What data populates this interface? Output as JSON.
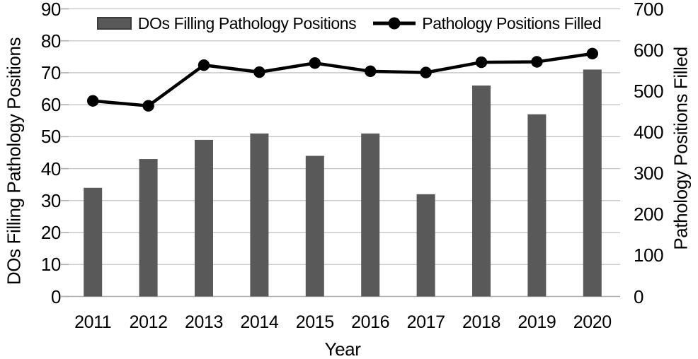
{
  "chart_data": {
    "type": "combo-bar-line",
    "title": "",
    "x": [
      "2011",
      "2012",
      "2013",
      "2014",
      "2015",
      "2016",
      "2017",
      "2018",
      "2019",
      "2020"
    ],
    "xlabel": "Year",
    "series": [
      {
        "name": "DOs Filling Pathology Positions",
        "type": "bar",
        "axis": "left",
        "color": "#595959",
        "values": [
          34,
          43,
          49,
          51,
          44,
          51,
          32,
          66,
          57,
          71
        ]
      },
      {
        "name": "Pathology Positions Filled",
        "type": "line",
        "axis": "right",
        "color": "#000000",
        "values": [
          476,
          464,
          563,
          546,
          568,
          548,
          545,
          570,
          571,
          591
        ]
      }
    ],
    "left_axis": {
      "title": "DOs Filling Pathology Positions",
      "min": 0,
      "max": 90,
      "step": 10,
      "tick_labels": [
        "0",
        "10",
        "20",
        "30",
        "40",
        "50",
        "60",
        "70",
        "80",
        "90"
      ]
    },
    "right_axis": {
      "title": "Pathology Positions Filled",
      "min": 0,
      "max": 700,
      "step": 100,
      "tick_labels": [
        "0",
        "100",
        "200",
        "300",
        "400",
        "500",
        "600",
        "700"
      ]
    },
    "grid": true,
    "legend_position": "top"
  },
  "colors": {
    "background": "#ffffff",
    "gridline": "#c4c4c4",
    "axis_line": "#aeaeae",
    "bar": "#595959",
    "line": "#000000",
    "text": "#000000"
  }
}
